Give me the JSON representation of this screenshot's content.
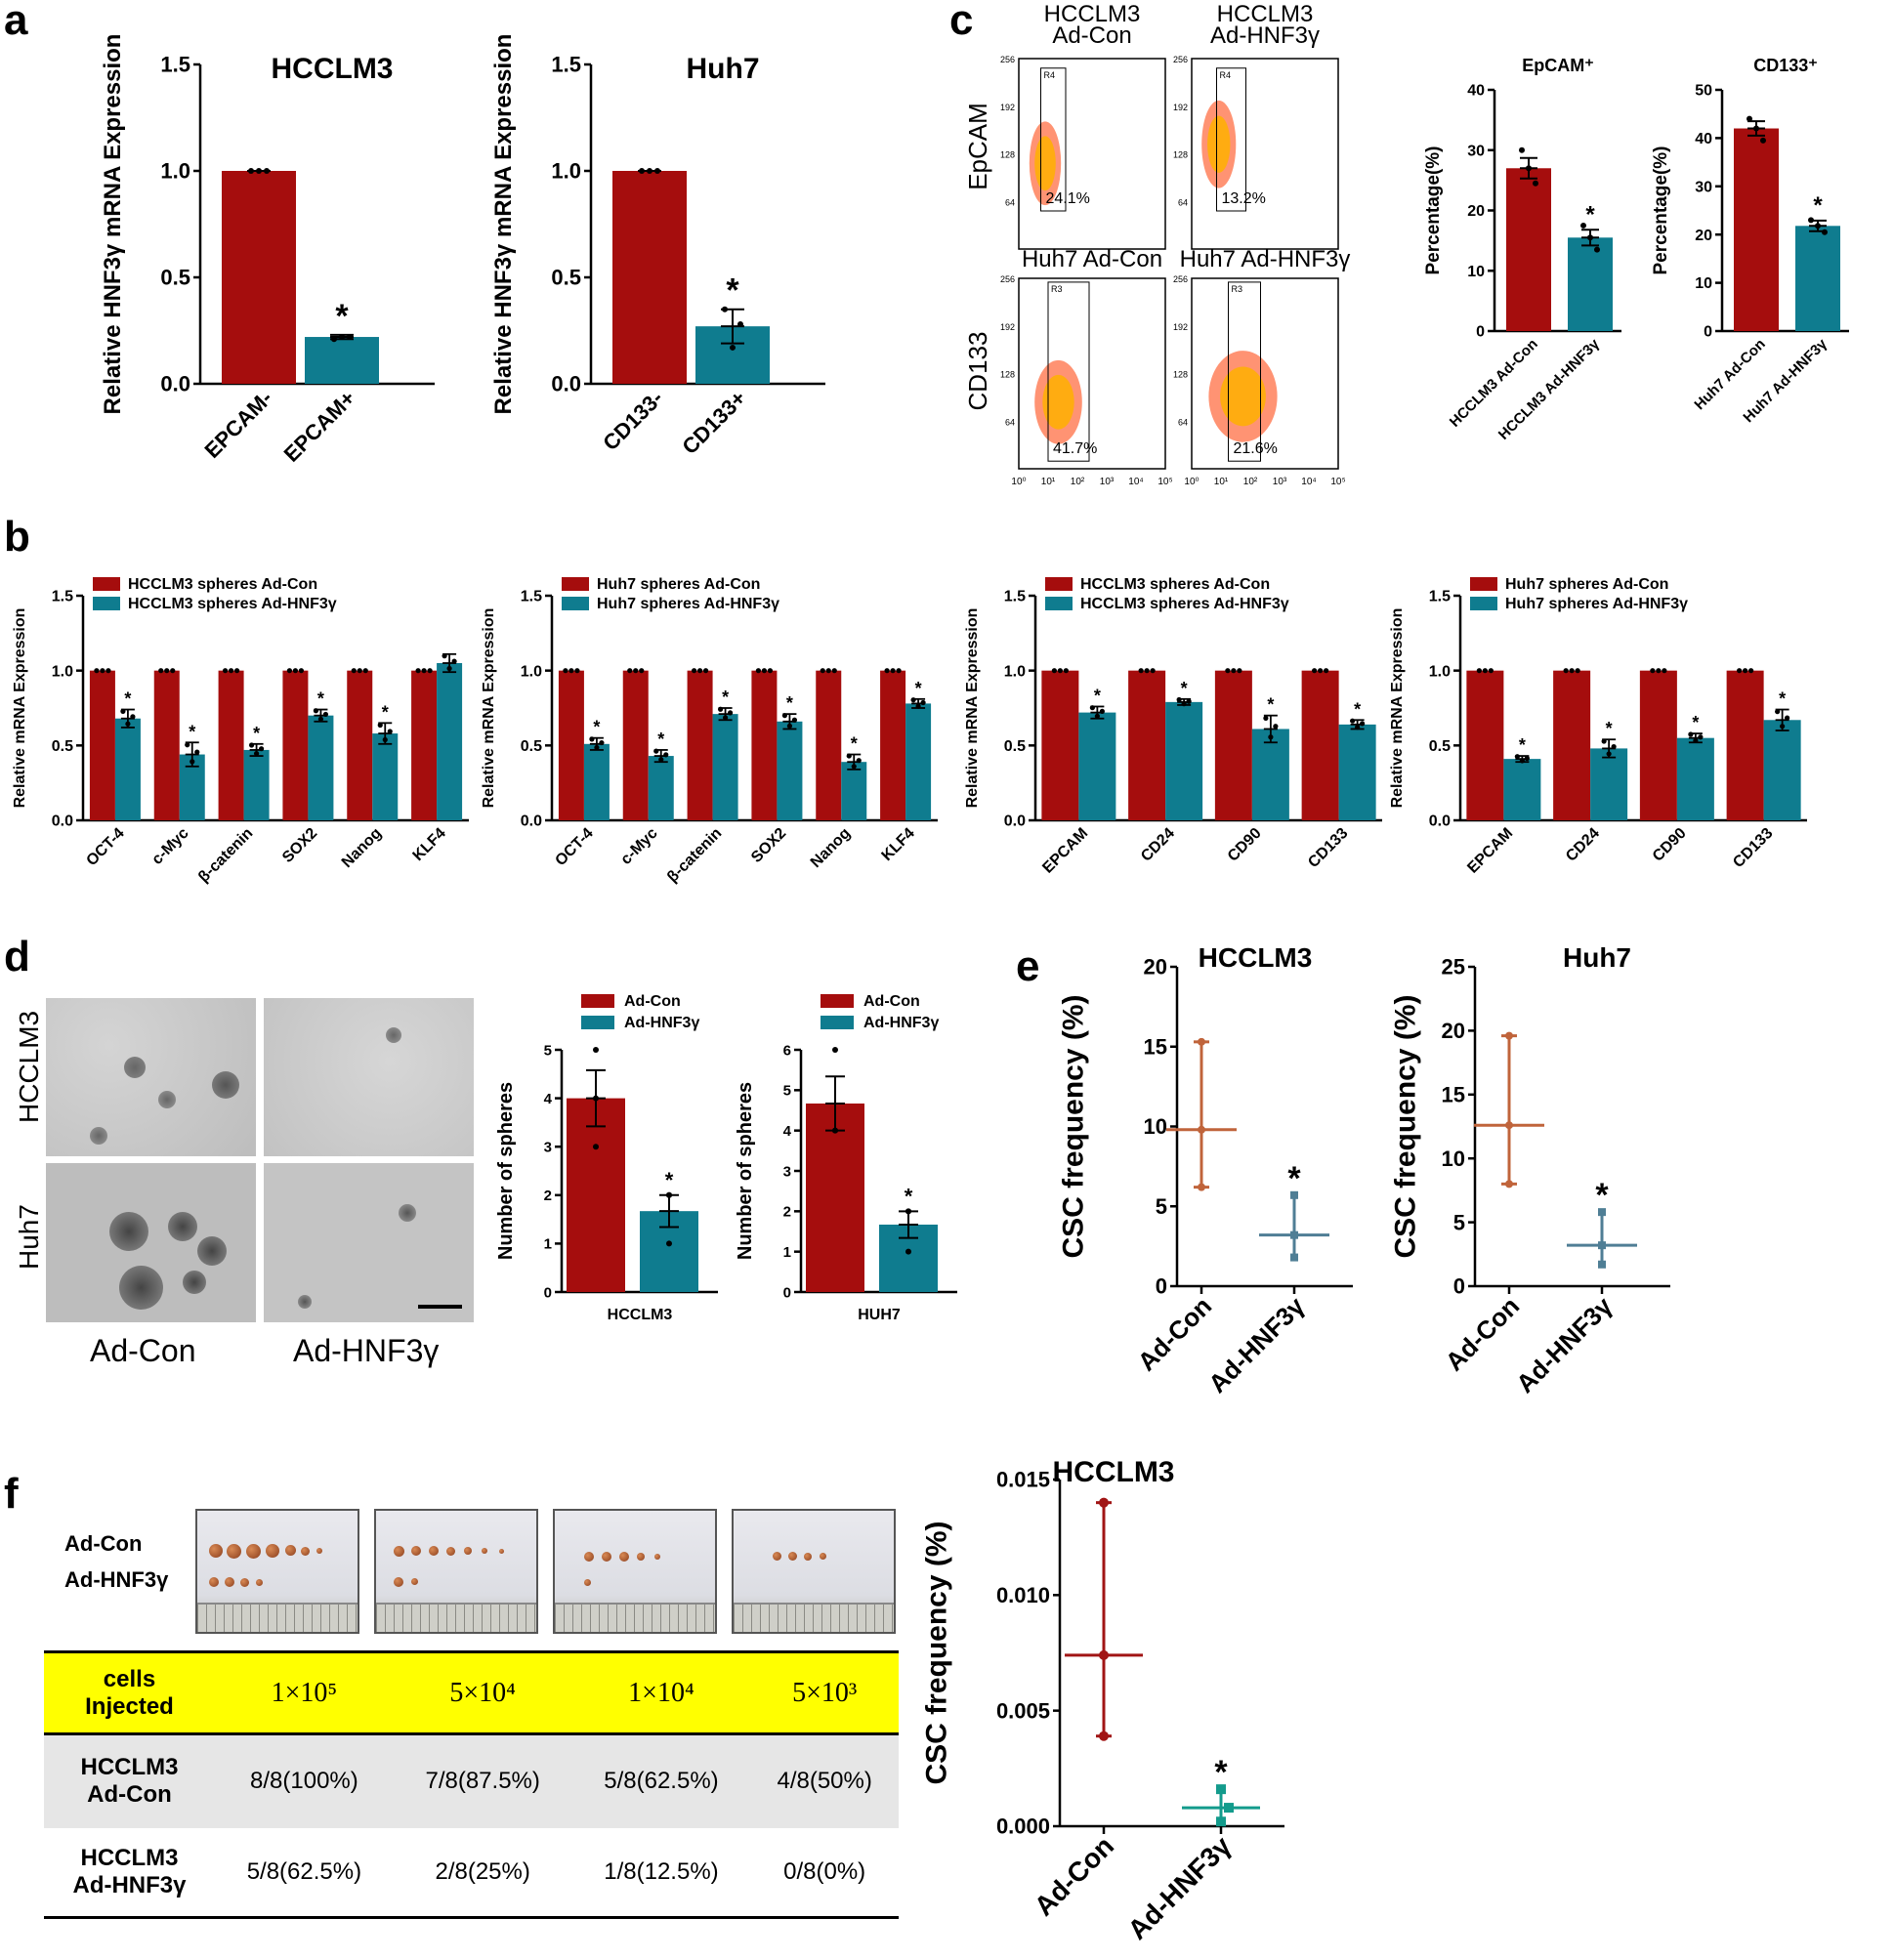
{
  "panel_labels": {
    "a": "a",
    "b": "b",
    "c": "c",
    "d": "d",
    "e": "e",
    "f": "f"
  },
  "sig_marker": "*",
  "colors": {
    "red": "#a50d0d",
    "teal": "#0f7c8f",
    "orange": "#c0643b",
    "steel": "#4f7e95",
    "darkred": "#a11515",
    "green": "#139b8c"
  },
  "chart_data": [
    {
      "id": "a1",
      "type": "bar",
      "title": "HCCLM3",
      "ylabel": "Relative HNF3γ mRNA Expression",
      "categories": [
        "EPCAM-",
        "EPCAM+"
      ],
      "values": [
        1.0,
        0.22
      ],
      "errors": [
        0,
        0.01
      ],
      "points": [
        [
          1,
          1,
          1
        ],
        [
          0.21,
          0.22,
          0.22
        ]
      ],
      "sig": [
        false,
        true
      ],
      "ylim": [
        0,
        1.5
      ],
      "yticks": [
        "0.0",
        "0.5",
        "1.0",
        "1.5"
      ]
    },
    {
      "id": "a2",
      "type": "bar",
      "title": "Huh7",
      "ylabel": "Relative HNF3γ mRNA Expression",
      "categories": [
        "CD133-",
        "CD133+"
      ],
      "values": [
        1.0,
        0.27
      ],
      "errors": [
        0,
        0.08
      ],
      "points": [
        [
          1,
          1,
          1
        ],
        [
          0.35,
          0.17,
          0.28
        ]
      ],
      "sig": [
        false,
        true
      ],
      "ylim": [
        0,
        1.5
      ],
      "yticks": [
        "0.0",
        "0.5",
        "1.0",
        "1.5"
      ]
    },
    {
      "id": "c1",
      "type": "bar",
      "title": "EpCAM⁺",
      "ylabel": "Percentage(%)",
      "categories": [
        "HCCLM3 Ad-Con",
        "HCCLM3 Ad-HNF3γ"
      ],
      "values": [
        27,
        15.5
      ],
      "errors": [
        1.7,
        1.3
      ],
      "points": [
        [
          30,
          27,
          24.5
        ],
        [
          17.5,
          15.5,
          13.5
        ]
      ],
      "sig": [
        false,
        true
      ],
      "ylim": [
        0,
        40
      ],
      "yticks": [
        "0",
        "10",
        "20",
        "30",
        "40"
      ]
    },
    {
      "id": "c2",
      "type": "bar",
      "title": "CD133⁺",
      "ylabel": "Percentage(%)",
      "categories": [
        "Huh7 Ad-Con",
        "Huh7 Ad-HNF3γ"
      ],
      "values": [
        42,
        21.8
      ],
      "errors": [
        1.5,
        1.1
      ],
      "points": [
        [
          44,
          42,
          39.5
        ],
        [
          23,
          21.8,
          20.5
        ]
      ],
      "sig": [
        false,
        true
      ],
      "ylim": [
        0,
        50
      ],
      "yticks": [
        "0",
        "10",
        "20",
        "30",
        "40",
        "50"
      ]
    },
    {
      "id": "b1",
      "type": "grouped_bar",
      "ylabel": "Relative mRNA Expression",
      "categories": [
        "OCT-4",
        "c-Myc",
        "β-catenin",
        "SOX2",
        "Nanog",
        "KLF4"
      ],
      "series": [
        {
          "name": "HCCLM3 spheres Ad-Con",
          "values": [
            1,
            1,
            1,
            1,
            1,
            1
          ]
        },
        {
          "name": "HCCLM3 spheres Ad-HNF3γ",
          "values": [
            0.68,
            0.44,
            0.47,
            0.7,
            0.58,
            1.05
          ]
        }
      ],
      "errors": [
        0.06,
        0.08,
        0.04,
        0.04,
        0.07,
        0.06
      ],
      "sig": [
        true,
        true,
        true,
        true,
        true,
        false
      ],
      "ylim": [
        0,
        1.5
      ],
      "yticks": [
        "0.0",
        "0.5",
        "1.0",
        "1.5"
      ]
    },
    {
      "id": "b2",
      "type": "grouped_bar",
      "ylabel": "Relative mRNA Expression",
      "categories": [
        "OCT-4",
        "c-Myc",
        "β-catenin",
        "SOX2",
        "Nanog",
        "KLF4"
      ],
      "series": [
        {
          "name": "Huh7 spheres Ad-Con",
          "values": [
            1,
            1,
            1,
            1,
            1,
            1
          ]
        },
        {
          "name": "Huh7 spheres Ad-HNF3γ",
          "values": [
            0.51,
            0.43,
            0.71,
            0.66,
            0.39,
            0.78
          ]
        }
      ],
      "errors": [
        0.04,
        0.04,
        0.04,
        0.05,
        0.05,
        0.03
      ],
      "sig": [
        true,
        true,
        true,
        true,
        true,
        true
      ],
      "ylim": [
        0,
        1.5
      ],
      "yticks": [
        "0.0",
        "0.5",
        "1.0",
        "1.5"
      ]
    },
    {
      "id": "b3",
      "type": "grouped_bar",
      "ylabel": "Relative mRNA Expression",
      "categories": [
        "EPCAM",
        "CD24",
        "CD90",
        "CD133"
      ],
      "series": [
        {
          "name": "HCCLM3 spheres Ad-Con",
          "values": [
            1,
            1,
            1,
            1
          ]
        },
        {
          "name": "HCCLM3 spheres Ad-HNF3γ",
          "values": [
            0.72,
            0.79,
            0.61,
            0.64
          ]
        }
      ],
      "errors": [
        0.04,
        0.02,
        0.09,
        0.03
      ],
      "sig": [
        true,
        true,
        true,
        true
      ],
      "ylim": [
        0,
        1.5
      ],
      "yticks": [
        "0.0",
        "0.5",
        "1.0",
        "1.5"
      ]
    },
    {
      "id": "b4",
      "type": "grouped_bar",
      "ylabel": "Relative mRNA Expression",
      "categories": [
        "EPCAM",
        "CD24",
        "CD90",
        "CD133"
      ],
      "series": [
        {
          "name": "Huh7 spheres Ad-Con",
          "values": [
            1,
            1,
            1,
            1
          ]
        },
        {
          "name": "Huh7 spheres Ad-HNF3γ",
          "values": [
            0.41,
            0.48,
            0.55,
            0.67
          ]
        }
      ],
      "errors": [
        0.02,
        0.06,
        0.03,
        0.07
      ],
      "sig": [
        true,
        true,
        true,
        true
      ],
      "ylim": [
        0,
        1.5
      ],
      "yticks": [
        "0.0",
        "0.5",
        "1.0",
        "1.5"
      ]
    },
    {
      "id": "d1",
      "type": "bar",
      "xlabel": "HCCLM3",
      "ylabel": "Number of spheres",
      "legend": [
        "Ad-Con",
        "Ad-HNF3γ"
      ],
      "categories": [
        "Ad-Con",
        "Ad-HNF3γ"
      ],
      "values": [
        4.0,
        1.67
      ],
      "errors": [
        0.58,
        0.33
      ],
      "points": [
        [
          5,
          4,
          3
        ],
        [
          2,
          2,
          1
        ]
      ],
      "sig": [
        false,
        true
      ],
      "ylim": [
        0,
        5
      ],
      "yticks": [
        "0",
        "1",
        "2",
        "3",
        "4",
        "5"
      ]
    },
    {
      "id": "d2",
      "type": "bar",
      "xlabel": "HUH7",
      "ylabel": "Number of spheres",
      "legend": [
        "Ad-Con",
        "Ad-HNF3γ"
      ],
      "categories": [
        "Ad-Con",
        "Ad-HNF3γ"
      ],
      "values": [
        4.67,
        1.67
      ],
      "errors": [
        0.67,
        0.33
      ],
      "points": [
        [
          6,
          4,
          4
        ],
        [
          2,
          2,
          1
        ]
      ],
      "sig": [
        false,
        true
      ],
      "ylim": [
        0,
        6
      ],
      "yticks": [
        "0",
        "1",
        "2",
        "3",
        "4",
        "5",
        "6"
      ]
    },
    {
      "id": "e1",
      "type": "interval",
      "title": "HCCLM3",
      "ylabel": "CSC frequency (%)",
      "categories": [
        "Ad-Con",
        "Ad-HNF3γ"
      ],
      "estimate": [
        9.8,
        3.2
      ],
      "lower": [
        6.2,
        1.8
      ],
      "upper": [
        15.3,
        5.7
      ],
      "sig": [
        false,
        true
      ],
      "ylim": [
        0,
        20
      ],
      "yticks": [
        "0",
        "5",
        "10",
        "15",
        "20"
      ]
    },
    {
      "id": "e2",
      "type": "interval",
      "title": "Huh7",
      "ylabel": "CSC frequency (%)",
      "categories": [
        "Ad-Con",
        "Ad-HNF3γ"
      ],
      "estimate": [
        12.6,
        3.2
      ],
      "lower": [
        8.0,
        1.7
      ],
      "upper": [
        19.6,
        5.8
      ],
      "sig": [
        false,
        true
      ],
      "ylim": [
        0,
        25
      ],
      "yticks": [
        "0",
        "5",
        "10",
        "15",
        "20",
        "25"
      ]
    },
    {
      "id": "f1",
      "type": "interval",
      "title": "HCCLM3",
      "ylabel": "CSC frequency (%)",
      "categories": [
        "Ad-Con",
        "Ad-HNF3γ"
      ],
      "estimate": [
        0.0074,
        0.0008
      ],
      "lower": [
        0.0039,
        0.0002
      ],
      "upper": [
        0.014,
        0.0016
      ],
      "sig": [
        false,
        true
      ],
      "ylim": [
        0,
        0.015
      ],
      "yticks": [
        "0.000",
        "0.005",
        "0.010",
        "0.015"
      ]
    }
  ],
  "flow": {
    "row_labels": [
      "EpCAM",
      "CD133"
    ],
    "plots": [
      {
        "title": "HCCLM3\nAd-Con",
        "gate": "R4",
        "pct": "24.1%"
      },
      {
        "title": "HCCLM3\nAd-HNF3γ",
        "gate": "R4",
        "pct": "13.2%"
      },
      {
        "title": "Huh7 Ad-Con",
        "gate": "R3",
        "pct": "41.7%"
      },
      {
        "title": "Huh7 Ad-HNF3γ",
        "gate": "R3",
        "pct": "21.6%"
      }
    ],
    "yticks": [
      "64",
      "128",
      "192",
      "256"
    ],
    "xticks": [
      "10⁰",
      "10¹",
      "10²",
      "10³",
      "10⁴",
      "10⁵"
    ]
  },
  "micro": {
    "row_labels": [
      "HCCLM3",
      "Huh7"
    ],
    "col_labels": [
      "Ad-Con",
      "Ad-HNF3γ"
    ]
  },
  "tumor": {
    "row_labels": [
      "Ad-Con",
      "Ad-HNF3γ"
    ]
  },
  "table": {
    "header": [
      "cells\nInjected",
      "1×10⁵",
      "5×10⁴",
      "1×10⁴",
      "5×10³"
    ],
    "rows": [
      [
        "HCCLM3\nAd-Con",
        "8/8(100%)",
        "7/8(87.5%)",
        "5/8(62.5%)",
        "4/8(50%)"
      ],
      [
        "HCCLM3\nAd-HNF3γ",
        "5/8(62.5%)",
        "2/8(25%)",
        "1/8(12.5%)",
        "0/8(0%)"
      ]
    ]
  }
}
